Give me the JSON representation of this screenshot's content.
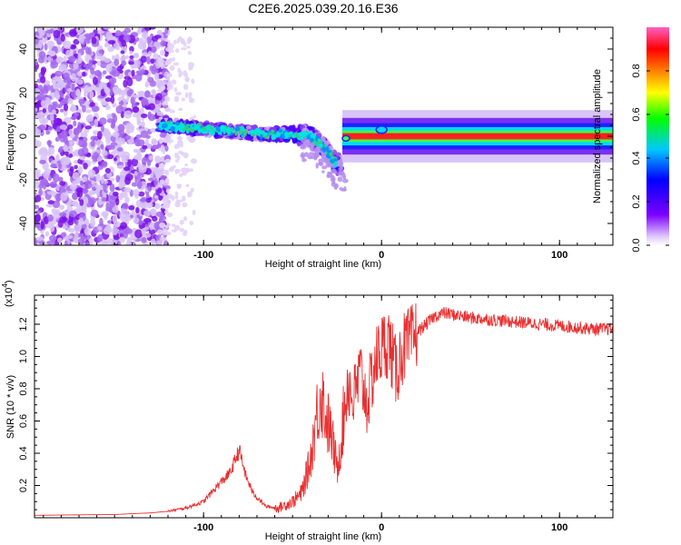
{
  "title": "C2E6.2025.039.20.16.E36",
  "chart_data": [
    {
      "type": "heatmap",
      "name": "spectrogram",
      "xlabel": "Height of straight line (km)",
      "ylabel": "Frequency (Hz)",
      "xlim": [
        -195,
        130
      ],
      "ylim": [
        -50,
        50
      ],
      "xticks": [
        -100,
        0,
        100
      ],
      "xtick_labels": [
        "-100",
        "0",
        "100"
      ],
      "yticks": [
        -40,
        -20,
        0,
        20,
        40
      ],
      "ytick_labels": [
        "-40",
        "-20",
        "0",
        "20",
        "40"
      ],
      "colorbar": {
        "label": "Normalized spectral amplitude",
        "range": [
          0,
          1
        ],
        "ticks": [
          0.0,
          0.2,
          0.4,
          0.6,
          0.8
        ],
        "tick_labels": [
          "0.0",
          "0.2",
          "0.4",
          "0.6",
          "0.8"
        ],
        "colors": [
          "#ffffff",
          "#7b00ff",
          "#0000ff",
          "#00c8ff",
          "#00ff00",
          "#ffff00",
          "#ff8000",
          "#ff0000",
          "#ff60c0"
        ]
      },
      "features": [
        {
          "label": "broadband noise",
          "x_range": [
            -195,
            -120
          ],
          "freq_range": [
            -50,
            50
          ]
        },
        {
          "label": "carrier track",
          "x_range": [
            -125,
            -22
          ],
          "freq_points": [
            [
              -125,
              5
            ],
            [
              -110,
              4
            ],
            [
              -95,
              3
            ],
            [
              -80,
              2
            ],
            [
              -65,
              1
            ],
            [
              -50,
              1
            ],
            [
              -40,
              0
            ],
            [
              -32,
              -5
            ],
            [
              -25,
              -13
            ]
          ]
        },
        {
          "label": "stable carrier",
          "x_range": [
            -22,
            130
          ],
          "freq": 0
        }
      ]
    },
    {
      "type": "line",
      "name": "snr",
      "xlabel": "Height of straight line (km)",
      "ylabel": "SNR (10 * v/v)",
      "y_multiplier": "x10^4",
      "xlim": [
        -195,
        130
      ],
      "ylim": [
        0,
        1.38
      ],
      "xticks": [
        -100,
        0,
        100
      ],
      "xtick_labels": [
        "-100",
        "0",
        "100"
      ],
      "yticks": [
        0.2,
        0.4,
        0.6,
        0.8,
        1.0,
        1.2
      ],
      "ytick_labels": [
        "0.2",
        "0.4",
        "0.6",
        "0.8",
        "1.0",
        "1.2"
      ],
      "color": "#e83030",
      "series": [
        {
          "name": "SNR",
          "x": [
            -195,
            -170,
            -150,
            -130,
            -120,
            -110,
            -100,
            -92,
            -85,
            -80,
            -76,
            -72,
            -65,
            -58,
            -50,
            -45,
            -40,
            -37,
            -34,
            -31,
            -28,
            -25,
            -22,
            -19,
            -16,
            -12,
            -8,
            -4,
            0,
            4,
            8,
            12,
            16,
            20,
            25,
            30,
            35,
            40,
            50,
            60,
            70,
            80,
            90,
            100,
            110,
            120,
            130
          ],
          "values": [
            0.015,
            0.018,
            0.02,
            0.03,
            0.04,
            0.06,
            0.1,
            0.2,
            0.28,
            0.42,
            0.25,
            0.15,
            0.07,
            0.06,
            0.1,
            0.15,
            0.35,
            0.6,
            0.78,
            0.62,
            0.5,
            0.3,
            0.55,
            0.85,
            0.72,
            0.9,
            0.7,
            0.95,
            1.05,
            1.1,
            0.9,
            1.05,
            1.08,
            1.15,
            1.2,
            1.25,
            1.27,
            1.26,
            1.24,
            1.23,
            1.22,
            1.21,
            1.2,
            1.19,
            1.18,
            1.17,
            1.17
          ]
        }
      ]
    }
  ]
}
